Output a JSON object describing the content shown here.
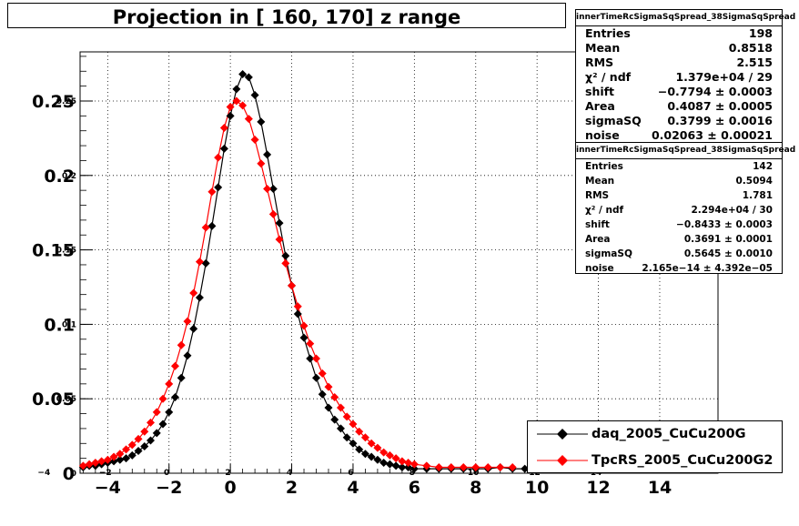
{
  "chart_data": {
    "type": "scatter",
    "title": "Projection in [ 160, 170] z range",
    "xlabel": "",
    "ylabel": "",
    "xlim": [
      -4.9,
      15.9
    ],
    "ylim": [
      0,
      0.283
    ],
    "x_ticks": [
      -4,
      -2,
      0,
      2,
      4,
      6,
      8,
      10,
      12,
      14
    ],
    "x_tick_labels": [
      "−4",
      "−2",
      "0",
      "2",
      "4",
      "6",
      "8",
      "10",
      "12",
      "14"
    ],
    "x_tick_labels_small": [
      "−4",
      "−2",
      "0",
      "2",
      "4",
      "6",
      "8",
      "10",
      "12",
      "14"
    ],
    "y_ticks": [
      0,
      0.05,
      0.1,
      0.15,
      0.2,
      0.25
    ],
    "y_tick_labels": [
      "0",
      "0.05",
      "0.1",
      "0.15",
      "0.2",
      "0.25"
    ],
    "y_tick_labels_small": [
      "0",
      "0.05",
      "0.1",
      "0.15",
      "0.2",
      "0.25"
    ],
    "grid": true,
    "series": [
      {
        "name": "daq_2005_CuCu200G",
        "color": "#000000",
        "marker": "diamond",
        "points": [
          [
            -4.8,
            0.004
          ],
          [
            -4.6,
            0.005
          ],
          [
            -4.4,
            0.005
          ],
          [
            -4.2,
            0.006
          ],
          [
            -4.0,
            0.007
          ],
          [
            -3.8,
            0.008
          ],
          [
            -3.6,
            0.009
          ],
          [
            -3.4,
            0.01
          ],
          [
            -3.2,
            0.012
          ],
          [
            -3.0,
            0.015
          ],
          [
            -2.8,
            0.018
          ],
          [
            -2.6,
            0.022
          ],
          [
            -2.4,
            0.027
          ],
          [
            -2.2,
            0.033
          ],
          [
            -2.0,
            0.041
          ],
          [
            -1.8,
            0.051
          ],
          [
            -1.6,
            0.064
          ],
          [
            -1.4,
            0.079
          ],
          [
            -1.2,
            0.097
          ],
          [
            -1.0,
            0.118
          ],
          [
            -0.8,
            0.141
          ],
          [
            -0.6,
            0.166
          ],
          [
            -0.4,
            0.192
          ],
          [
            -0.2,
            0.218
          ],
          [
            0.0,
            0.24
          ],
          [
            0.2,
            0.258
          ],
          [
            0.4,
            0.268
          ],
          [
            0.6,
            0.266
          ],
          [
            0.8,
            0.254
          ],
          [
            1.0,
            0.236
          ],
          [
            1.2,
            0.214
          ],
          [
            1.4,
            0.191
          ],
          [
            1.6,
            0.168
          ],
          [
            1.8,
            0.146
          ],
          [
            2.0,
            0.126
          ],
          [
            2.2,
            0.107
          ],
          [
            2.4,
            0.091
          ],
          [
            2.6,
            0.077
          ],
          [
            2.8,
            0.064
          ],
          [
            3.0,
            0.053
          ],
          [
            3.2,
            0.044
          ],
          [
            3.4,
            0.036
          ],
          [
            3.6,
            0.03
          ],
          [
            3.8,
            0.024
          ],
          [
            4.0,
            0.02
          ],
          [
            4.2,
            0.016
          ],
          [
            4.4,
            0.013
          ],
          [
            4.6,
            0.011
          ],
          [
            4.8,
            0.009
          ],
          [
            5.0,
            0.007
          ],
          [
            5.2,
            0.006
          ],
          [
            5.4,
            0.005
          ],
          [
            5.6,
            0.004
          ],
          [
            5.8,
            0.004
          ],
          [
            6.0,
            0.003
          ],
          [
            6.4,
            0.003
          ],
          [
            6.8,
            0.003
          ],
          [
            7.2,
            0.003
          ],
          [
            7.6,
            0.003
          ],
          [
            8.0,
            0.003
          ],
          [
            8.4,
            0.003
          ],
          [
            8.8,
            0.004
          ],
          [
            9.2,
            0.003
          ],
          [
            9.6,
            0.003
          ]
        ]
      },
      {
        "name": "TpcRS_2005_CuCu200G2",
        "color": "#ff0000",
        "marker": "diamond",
        "points": [
          [
            -4.8,
            0.005
          ],
          [
            -4.6,
            0.006
          ],
          [
            -4.4,
            0.007
          ],
          [
            -4.2,
            0.008
          ],
          [
            -4.0,
            0.009
          ],
          [
            -3.8,
            0.011
          ],
          [
            -3.6,
            0.013
          ],
          [
            -3.4,
            0.016
          ],
          [
            -3.2,
            0.019
          ],
          [
            -3.0,
            0.023
          ],
          [
            -2.8,
            0.028
          ],
          [
            -2.6,
            0.034
          ],
          [
            -2.4,
            0.041
          ],
          [
            -2.2,
            0.05
          ],
          [
            -2.0,
            0.06
          ],
          [
            -1.8,
            0.072
          ],
          [
            -1.6,
            0.086
          ],
          [
            -1.4,
            0.102
          ],
          [
            -1.2,
            0.121
          ],
          [
            -1.0,
            0.142
          ],
          [
            -0.8,
            0.165
          ],
          [
            -0.6,
            0.189
          ],
          [
            -0.4,
            0.212
          ],
          [
            -0.2,
            0.232
          ],
          [
            0.0,
            0.246
          ],
          [
            0.2,
            0.25
          ],
          [
            0.4,
            0.247
          ],
          [
            0.6,
            0.238
          ],
          [
            0.8,
            0.224
          ],
          [
            1.0,
            0.208
          ],
          [
            1.2,
            0.191
          ],
          [
            1.4,
            0.174
          ],
          [
            1.6,
            0.157
          ],
          [
            1.8,
            0.141
          ],
          [
            2.0,
            0.126
          ],
          [
            2.2,
            0.112
          ],
          [
            2.4,
            0.099
          ],
          [
            2.6,
            0.087
          ],
          [
            2.8,
            0.077
          ],
          [
            3.0,
            0.067
          ],
          [
            3.2,
            0.058
          ],
          [
            3.4,
            0.051
          ],
          [
            3.6,
            0.044
          ],
          [
            3.8,
            0.038
          ],
          [
            4.0,
            0.033
          ],
          [
            4.2,
            0.028
          ],
          [
            4.4,
            0.024
          ],
          [
            4.6,
            0.02
          ],
          [
            4.8,
            0.017
          ],
          [
            5.0,
            0.014
          ],
          [
            5.2,
            0.012
          ],
          [
            5.4,
            0.01
          ],
          [
            5.6,
            0.008
          ],
          [
            5.8,
            0.007
          ],
          [
            6.0,
            0.006
          ],
          [
            6.4,
            0.005
          ],
          [
            6.8,
            0.004
          ],
          [
            7.2,
            0.004
          ],
          [
            7.6,
            0.004
          ],
          [
            8.0,
            0.004
          ],
          [
            8.4,
            0.004
          ],
          [
            8.8,
            0.004
          ],
          [
            9.2,
            0.004
          ]
        ]
      }
    ]
  },
  "stats_boxes": [
    {
      "header": "innerTimeRcSigmaSqSpread_38SigmaSqSpread",
      "rows": [
        {
          "label": "Entries",
          "value": "198"
        },
        {
          "label": "Mean",
          "value": "0.8518"
        },
        {
          "label": "RMS",
          "value": "2.515"
        },
        {
          "label": "χ² / ndf",
          "value": "1.379e+04 / 29"
        },
        {
          "label": "shift",
          "value": "−0.7794 ± 0.0003"
        },
        {
          "label": "Area",
          "value": "0.4087 ± 0.0005"
        },
        {
          "label": "sigmaSQ",
          "value": "0.3799 ± 0.0016"
        },
        {
          "label": "noise",
          "value": "0.02063 ± 0.00021"
        }
      ]
    },
    {
      "header": "innerTimeRcSigmaSqSpread_38SigmaSqSpread",
      "rows": [
        {
          "label": "Entries",
          "value": "142"
        },
        {
          "label": "Mean",
          "value": "0.5094"
        },
        {
          "label": "RMS",
          "value": "1.781"
        },
        {
          "label": "χ² / ndf",
          "value": "2.294e+04 / 30"
        },
        {
          "label": "shift",
          "value": "−0.8433 ± 0.0003"
        },
        {
          "label": "Area",
          "value": "0.3691 ± 0.0001"
        },
        {
          "label": "sigmaSQ",
          "value": "0.5645 ± 0.0010"
        },
        {
          "label": "noise",
          "value": "2.165e−14 ± 4.392e−05"
        }
      ]
    }
  ],
  "legend": {
    "placement": "bottom-right",
    "entries": [
      {
        "label": "daq_2005_CuCu200G",
        "color": "#000000"
      },
      {
        "label": "TpcRS_2005_CuCu200G2",
        "color": "#ff0000"
      }
    ]
  }
}
